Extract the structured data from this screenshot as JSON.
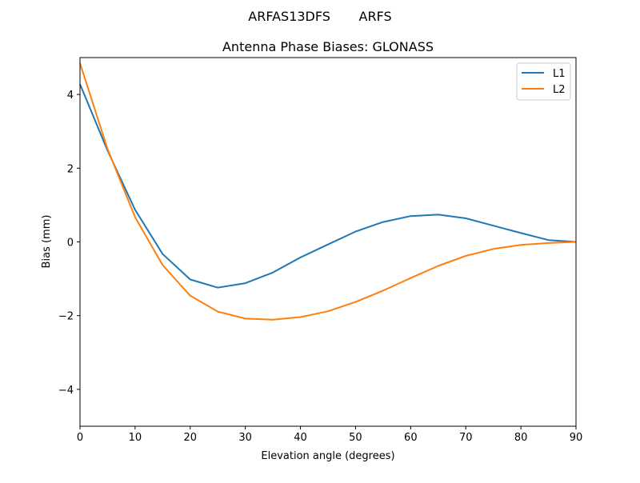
{
  "chart_data": {
    "type": "line",
    "suptitle": "ARFAS13DFS       ARFS",
    "title": "Antenna Phase Biases: GLONASS",
    "xlabel": "Elevation angle (degrees)",
    "ylabel": "Bias (mm)",
    "xlim": [
      0,
      90
    ],
    "ylim": [
      -5,
      5
    ],
    "xticks": [
      0,
      10,
      20,
      30,
      40,
      50,
      60,
      70,
      80,
      90
    ],
    "xtick_labels": [
      "0",
      "10",
      "20",
      "30",
      "40",
      "50",
      "60",
      "70",
      "80",
      "90"
    ],
    "yticks": [
      -4,
      -2,
      0,
      2,
      4
    ],
    "ytick_labels": [
      "−4",
      "−2",
      "0",
      "2",
      "4"
    ],
    "grid": false,
    "legend_position": "top-right",
    "x": [
      0,
      5,
      10,
      15,
      20,
      25,
      30,
      35,
      40,
      45,
      50,
      55,
      60,
      65,
      70,
      75,
      80,
      85,
      90
    ],
    "series": [
      {
        "name": "L1",
        "color": "#1f77b4",
        "values": [
          4.28,
          2.48,
          0.87,
          -0.33,
          -1.02,
          -1.24,
          -1.12,
          -0.83,
          -0.42,
          -0.07,
          0.28,
          0.54,
          0.7,
          0.74,
          0.64,
          0.44,
          0.24,
          0.05,
          0.0
        ]
      },
      {
        "name": "L2",
        "color": "#ff7f0e",
        "values": [
          4.85,
          2.52,
          0.67,
          -0.63,
          -1.46,
          -1.89,
          -2.08,
          -2.11,
          -2.04,
          -1.88,
          -1.63,
          -1.32,
          -0.98,
          -0.65,
          -0.38,
          -0.19,
          -0.08,
          -0.03,
          0.0
        ]
      }
    ]
  }
}
